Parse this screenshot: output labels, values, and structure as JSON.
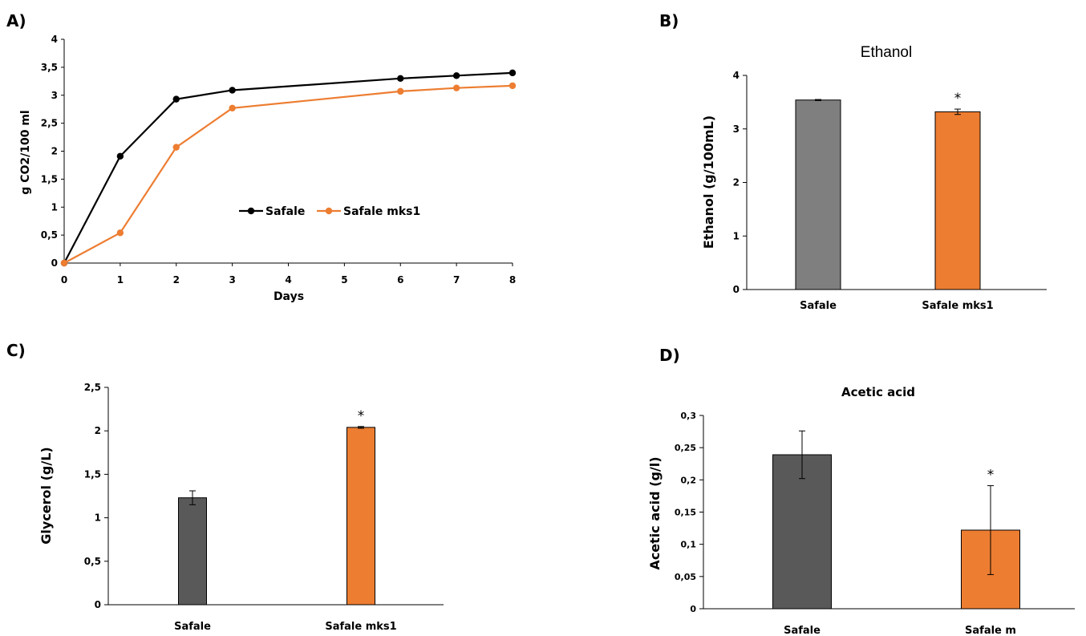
{
  "colors": {
    "black_series": "#000000",
    "orange": "#ED7D31",
    "gray_bar": "#7F7F7F",
    "dark_bar": "#595959",
    "axis": "#000000"
  },
  "panels": {
    "a": "A)",
    "b": "B)",
    "c": "C)",
    "d": "D)"
  },
  "chart_data": [
    {
      "id": "A",
      "type": "line",
      "title": "",
      "xlabel": "Days",
      "ylabel": "g CO2/100 ml",
      "x": [
        "0",
        "1",
        "2",
        "3",
        "4",
        "5",
        "6",
        "7",
        "8"
      ],
      "y_ticks": [
        "0",
        "0,5",
        "1",
        "1,5",
        "2",
        "2,5",
        "3",
        "3,5",
        "4"
      ],
      "ylim": [
        0,
        4
      ],
      "legend_position": "center-right",
      "series": [
        {
          "name": "Safale",
          "color": "#000000",
          "x": [
            0,
            1,
            2,
            3,
            6,
            7,
            8
          ],
          "values": [
            0,
            1.91,
            2.93,
            3.09,
            3.3,
            3.35,
            3.4
          ]
        },
        {
          "name": "Safale mks1",
          "color": "#ED7D31",
          "x": [
            0,
            1,
            2,
            3,
            6,
            7,
            8
          ],
          "values": [
            0,
            0.54,
            2.07,
            2.77,
            3.07,
            3.13,
            3.17
          ]
        }
      ]
    },
    {
      "id": "B",
      "type": "bar",
      "title": "Ethanol",
      "xlabel": "",
      "ylabel": "Ethanol (g/100mL)",
      "categories": [
        "Safale",
        "Safale mks1"
      ],
      "values": [
        3.54,
        3.32
      ],
      "errors": [
        0.01,
        0.05
      ],
      "colors": [
        "#7F7F7F",
        "#ED7D31"
      ],
      "significance": [
        "",
        "*"
      ],
      "y_ticks": [
        "0",
        "1",
        "2",
        "3",
        "4"
      ],
      "ylim": [
        0,
        4
      ]
    },
    {
      "id": "C",
      "type": "bar",
      "title": "",
      "xlabel": "",
      "ylabel": "Glycerol (g/L)",
      "categories": [
        "Safale",
        "Safale mks1"
      ],
      "values": [
        1.23,
        2.04
      ],
      "errors": [
        0.08,
        0.01
      ],
      "colors": [
        "#595959",
        "#ED7D31"
      ],
      "significance": [
        "",
        "*"
      ],
      "y_ticks": [
        "0",
        "0,5",
        "1",
        "1,5",
        "2",
        "2,5"
      ],
      "ylim": [
        0,
        2.5
      ]
    },
    {
      "id": "D",
      "type": "bar",
      "title": "Acetic acid",
      "xlabel": "",
      "ylabel": "Acetic acid (g/l)",
      "categories": [
        "Safale",
        "Safale m"
      ],
      "values": [
        0.239,
        0.122
      ],
      "errors": [
        0.037,
        0.069
      ],
      "colors": [
        "#595959",
        "#ED7D31"
      ],
      "significance": [
        "",
        "*"
      ],
      "y_ticks": [
        "0",
        "0,05",
        "0,1",
        "0,15",
        "0,2",
        "0,25",
        "0,3"
      ],
      "ylim": [
        0,
        0.3
      ]
    }
  ]
}
